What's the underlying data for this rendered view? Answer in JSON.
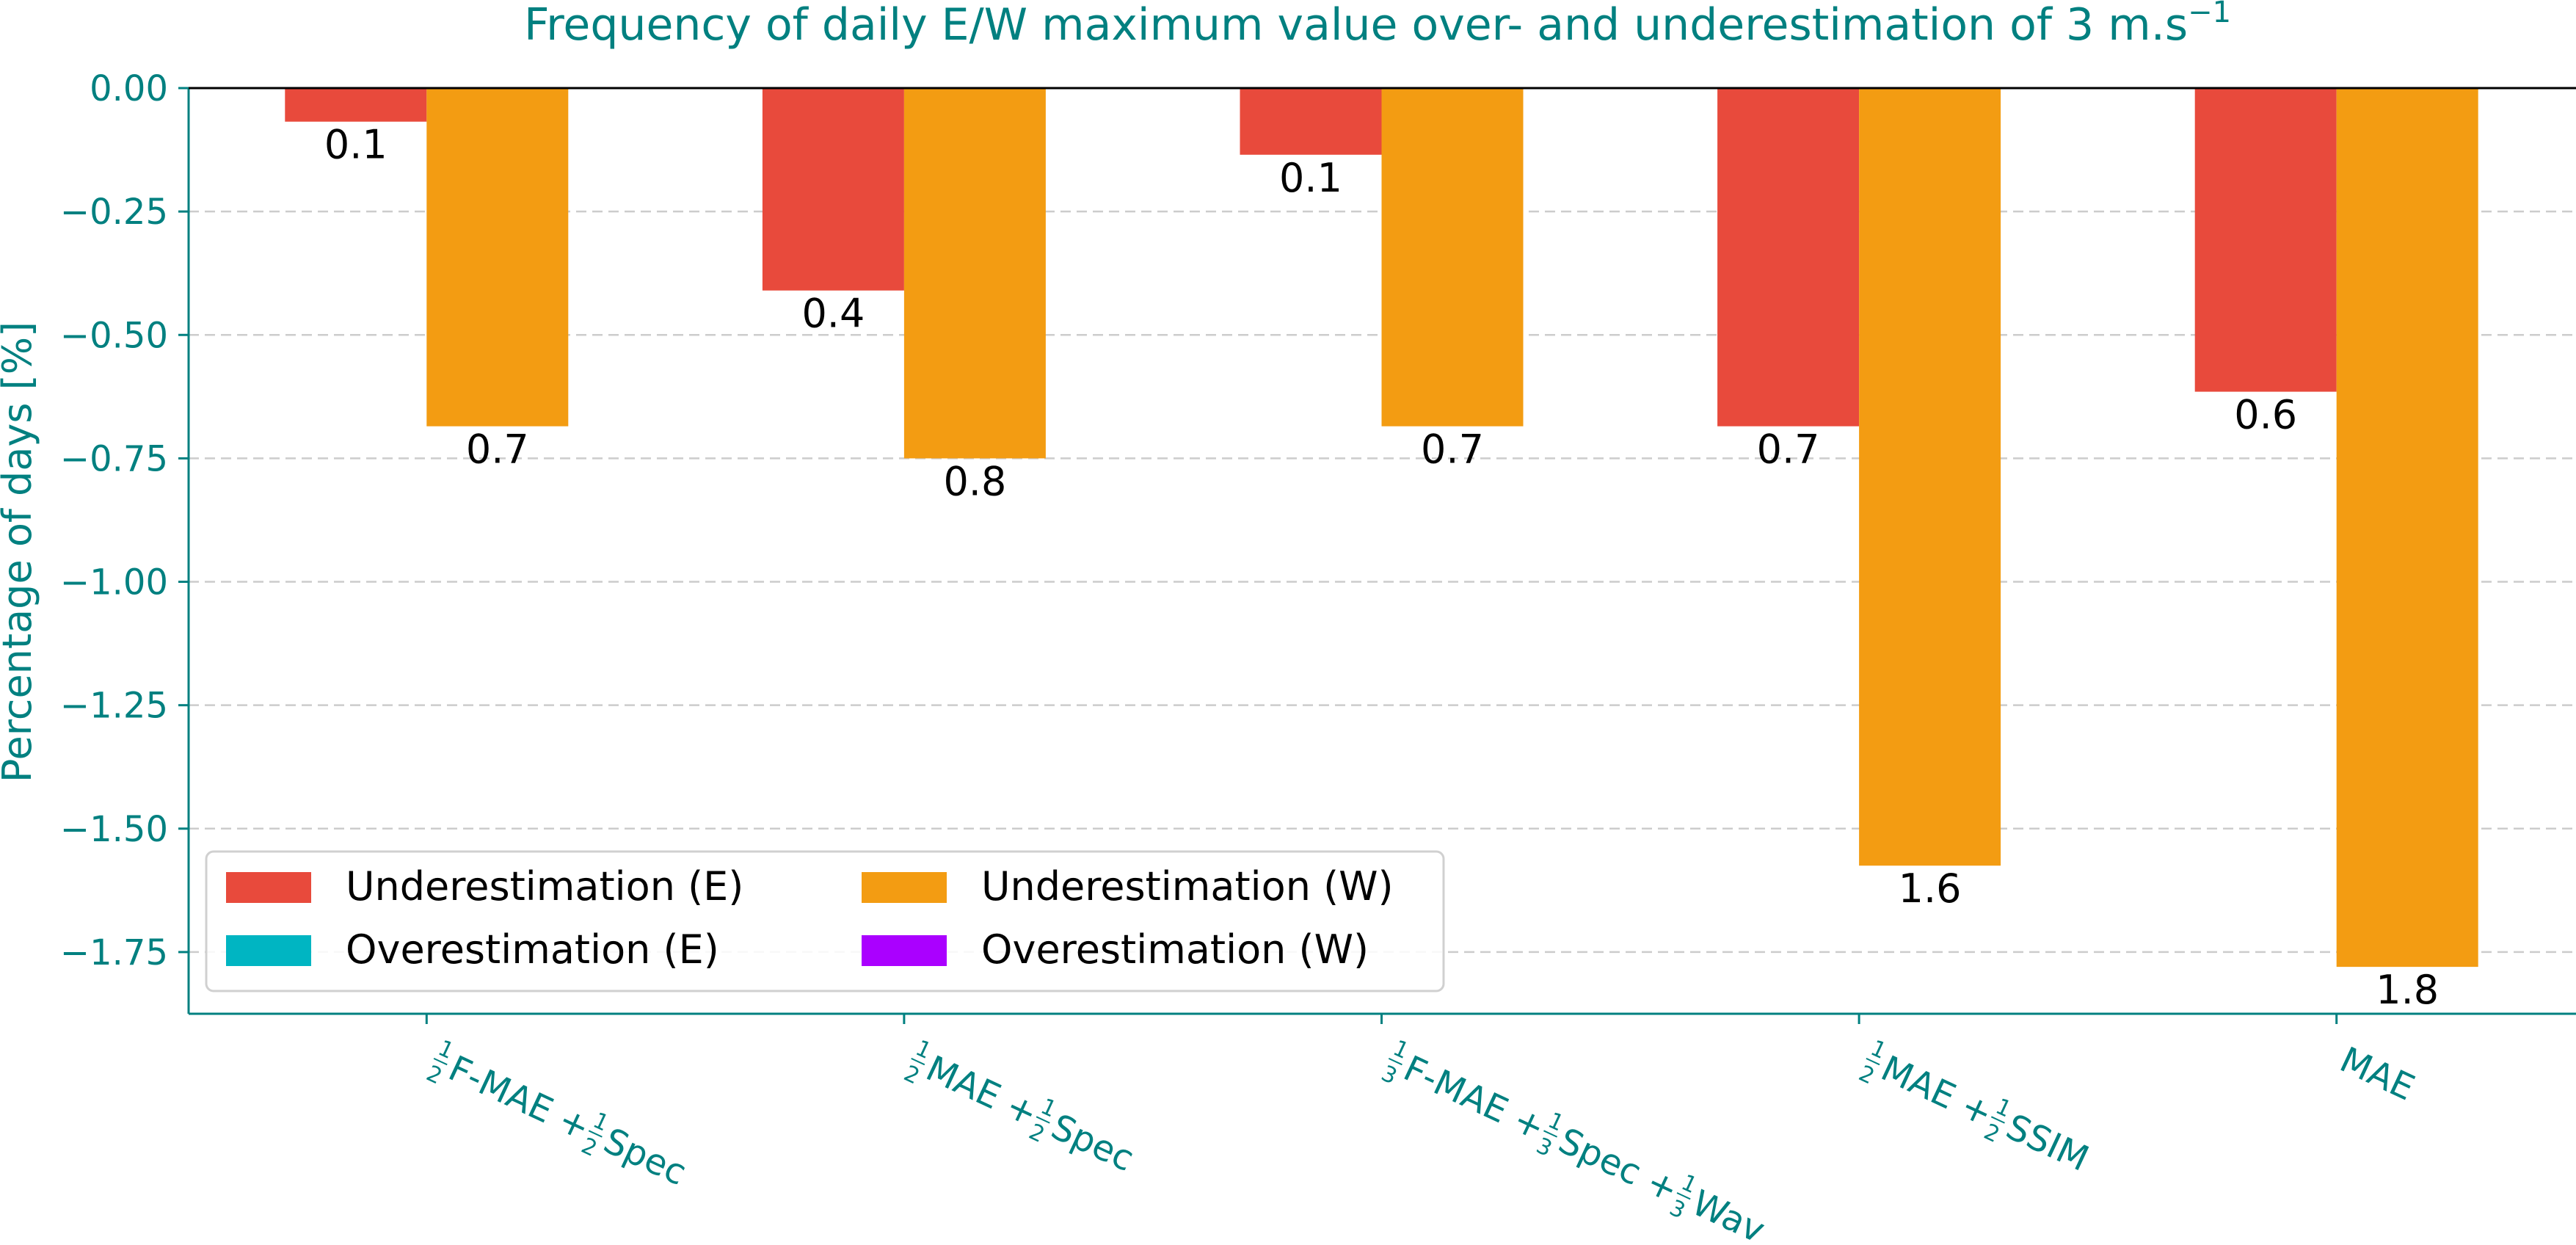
{
  "chart_data": {
    "type": "bar",
    "title": "Frequency of daily E/W maximum value over- and underestimation of 3 m.s",
    "title_superscript": "−1",
    "ylabel": "Percentage of days [%]",
    "xlabel": "",
    "ylim": [
      -1.875,
      0.0
    ],
    "yticks": [
      0.0,
      -0.25,
      -0.5,
      -0.75,
      -1.0,
      -1.25,
      -1.5,
      -1.75
    ],
    "ytick_labels": [
      "0.00",
      "−0.25",
      "−0.50",
      "−0.75",
      "−1.00",
      "−1.25",
      "−1.50",
      "−1.75"
    ],
    "grid": "horizontal dashed",
    "categories": [
      [
        {
          "c": 1,
          "d": 2
        },
        {
          "t": "F-MAE + "
        },
        {
          "c": 1,
          "d": 2
        },
        {
          "t": "Spec"
        }
      ],
      [
        {
          "c": 1,
          "d": 2
        },
        {
          "t": "MAE + "
        },
        {
          "c": 1,
          "d": 2
        },
        {
          "t": "Spec"
        }
      ],
      [
        {
          "c": 1,
          "d": 3
        },
        {
          "t": "F-MAE + "
        },
        {
          "c": 1,
          "d": 3
        },
        {
          "t": "Spec + "
        },
        {
          "c": 1,
          "d": 3
        },
        {
          "t": "Wav"
        }
      ],
      [
        {
          "c": 1,
          "d": 2
        },
        {
          "t": "MAE + "
        },
        {
          "c": 1,
          "d": 2
        },
        {
          "t": "SSIM"
        }
      ],
      [
        {
          "t": "MAE"
        }
      ]
    ],
    "series": [
      {
        "name": "Underestimation (E)",
        "color": "#e84a3c",
        "values": [
          -0.068,
          -0.41,
          -0.135,
          -0.685,
          -0.615
        ],
        "labels": [
          "0.1",
          "0.4",
          "0.1",
          "0.7",
          "0.6"
        ]
      },
      {
        "name": "Underestimation (W)",
        "color": "#f39c12",
        "values": [
          -0.685,
          -0.75,
          -0.685,
          -1.575,
          -1.78
        ],
        "labels": [
          "0.7",
          "0.8",
          "0.7",
          "1.6",
          "1.8"
        ]
      },
      {
        "name": "Overestimation (E)",
        "color": "#00b5c2",
        "values": [
          0,
          0,
          0,
          0,
          0
        ],
        "labels": []
      },
      {
        "name": "Overestimation (W)",
        "color": "#aa00ff",
        "values": [
          0,
          0,
          0,
          0,
          0
        ],
        "labels": []
      }
    ],
    "legend": {
      "placement": "lower-left",
      "columns": 2,
      "order": [
        "Underestimation (E)",
        "Overestimation (E)",
        "Underestimation (W)",
        "Overestimation (W)"
      ]
    },
    "axis_color": "#008080"
  }
}
